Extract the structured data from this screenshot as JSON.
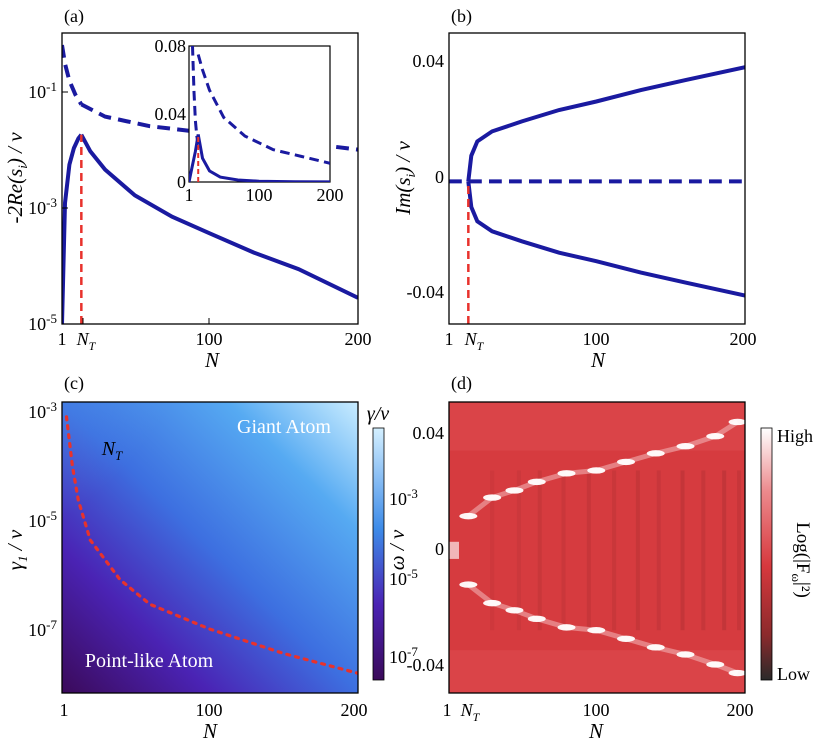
{
  "colors": {
    "curve": "#1a1aa0",
    "threshold": "#e8322c",
    "map_c": [
      "#3b0a5a",
      "#4a23b4",
      "#3d6fe0",
      "#56aaf2",
      "#c9ecff"
    ],
    "map_d": [
      "#2a2a2a",
      "#c7363a",
      "#e04a4f",
      "#f7d6d8",
      "#ffffff"
    ]
  },
  "chart_data": [
    {
      "id": "a",
      "type": "line",
      "panel_label": "(a)",
      "xlabel": "N",
      "ylabel": "-2Re(s_i) / ν",
      "xticks": [
        "1",
        "100",
        "200"
      ],
      "xtick_threshold": "N_T",
      "yticks": [
        "10^-1",
        "10^-3",
        "10^-5"
      ],
      "yscale": "log",
      "xlim": [
        1,
        200
      ],
      "ylim_log10": [
        -5,
        0.3
      ],
      "N_T": 14,
      "series": [
        {
          "style": "solid",
          "x": [
            1,
            3,
            6,
            9,
            12,
            14
          ],
          "y": [
            1e-05,
            0.0016,
            0.008,
            0.016,
            0.024,
            0.028
          ]
        },
        {
          "style": "solid",
          "x": [
            14,
            20,
            30,
            50,
            75,
            100,
            130,
            160,
            200
          ],
          "y": [
            0.028,
            0.014,
            0.0065,
            0.0022,
            0.0009,
            0.00045,
            0.0002,
            0.0001,
            3e-05
          ]
        },
        {
          "style": "dashed",
          "x": [
            1,
            3,
            6,
            10,
            14
          ],
          "y": [
            1.2,
            0.55,
            0.27,
            0.15,
            0.1
          ]
        },
        {
          "style": "dashed",
          "x": [
            14,
            30,
            60,
            100,
            150,
            200
          ],
          "y": [
            0.1,
            0.06,
            0.04,
            0.03,
            0.022,
            0.015
          ]
        }
      ],
      "inset": {
        "xticks": [
          "1",
          "100",
          "200"
        ],
        "yticks": [
          "0",
          "0.04",
          "0.08"
        ],
        "xlim": [
          1,
          200
        ],
        "ylim": [
          0,
          0.08
        ],
        "series": [
          {
            "style": "solid",
            "x": [
              1,
              5,
              10,
              14
            ],
            "y": [
              0.0,
              0.008,
              0.018,
              0.028
            ]
          },
          {
            "style": "solid",
            "x": [
              14,
              20,
              30,
              45,
              70,
              100,
              150,
              200
            ],
            "y": [
              0.028,
              0.014,
              0.0065,
              0.0029,
              0.0012,
              0.00045,
              0.0002,
              3e-05
            ]
          },
          {
            "style": "dashed",
            "x": [
              6,
              8,
              10,
              12,
              14
            ],
            "y": [
              0.08,
              0.053,
              0.036,
              0.027,
              0.022
            ]
          },
          {
            "style": "dashed",
            "x": [
              14,
              20,
              30,
              50,
              80,
              120,
              160,
              200
            ],
            "y": [
              0.075,
              0.066,
              0.054,
              0.038,
              0.027,
              0.019,
              0.015,
              0.011
            ]
          }
        ]
      }
    },
    {
      "id": "b",
      "type": "line",
      "panel_label": "(b)",
      "xlabel": "N",
      "ylabel": "Im(s_i) / ν",
      "xticks": [
        "1",
        "100",
        "200"
      ],
      "xtick_threshold": "N_T",
      "yticks": [
        "0.04",
        "0",
        "-0.04"
      ],
      "xlim": [
        1,
        200
      ],
      "ylim": [
        -0.05,
        0.052
      ],
      "N_T": 14,
      "series": [
        {
          "style": "solid",
          "x": [
            14,
            16,
            20,
            30,
            50,
            75,
            100,
            130,
            160,
            200
          ],
          "y": [
            0.0,
            0.009,
            0.014,
            0.0175,
            0.021,
            0.025,
            0.028,
            0.032,
            0.0355,
            0.04
          ]
        },
        {
          "style": "solid",
          "x": [
            14,
            16,
            20,
            30,
            50,
            75,
            100,
            130,
            160,
            200
          ],
          "y": [
            0.0,
            -0.009,
            -0.014,
            -0.0175,
            -0.021,
            -0.025,
            -0.028,
            -0.032,
            -0.0355,
            -0.04
          ]
        },
        {
          "style": "dashed",
          "x": [
            1,
            200
          ],
          "y": [
            0.0,
            0.0
          ]
        }
      ]
    },
    {
      "id": "c",
      "type": "heatmap",
      "panel_label": "(c)",
      "xlabel": "N",
      "ylabel": "γ_1 / ν",
      "xticks": [
        "1",
        "100",
        "200"
      ],
      "yticks": [
        "10^-3",
        "10^-5",
        "10^-7"
      ],
      "yscale": "log",
      "xlim": [
        1,
        200
      ],
      "ylim_log10": [
        -8.6,
        -2.7
      ],
      "colorbar_label": "γ/ν",
      "colorbar_ticks": [
        "10^-3",
        "10^-5",
        "10^-7"
      ],
      "annotations": [
        "Giant Atom",
        "N_T",
        "Point-like Atom"
      ],
      "boundary": {
        "style": "dotted",
        "x": [
          4,
          8,
          12,
          20,
          40,
          60,
          100,
          150,
          200
        ],
        "y_log10": [
          -3.0,
          -4.0,
          -4.7,
          -5.5,
          -6.3,
          -6.8,
          -7.3,
          -7.8,
          -8.2
        ]
      }
    },
    {
      "id": "d",
      "type": "heatmap",
      "panel_label": "(d)",
      "xlabel": "N",
      "ylabel": "ω / ν",
      "xticks": [
        "1",
        "100",
        "200"
      ],
      "xtick_threshold": "N_T",
      "yticks": [
        "0.04",
        "0",
        "-0.04"
      ],
      "xlim": [
        1,
        200
      ],
      "ylim": [
        -0.05,
        0.052
      ],
      "colorbar_label": "Log(|F_ω|²)",
      "colorbar_ticks": [
        "High",
        "Low"
      ],
      "ridge_upper": {
        "x": [
          14,
          30,
          45,
          60,
          80,
          100,
          120,
          140,
          160,
          180,
          195
        ],
        "y": [
          0.012,
          0.0185,
          0.021,
          0.024,
          0.027,
          0.028,
          0.031,
          0.034,
          0.0365,
          0.04,
          0.045
        ]
      },
      "ridge_lower": {
        "x": [
          14,
          30,
          45,
          60,
          80,
          100,
          120,
          140,
          160,
          180,
          195
        ],
        "y": [
          -0.012,
          -0.0185,
          -0.021,
          -0.024,
          -0.027,
          -0.028,
          -0.031,
          -0.034,
          -0.0365,
          -0.04,
          -0.043
        ]
      }
    }
  ]
}
